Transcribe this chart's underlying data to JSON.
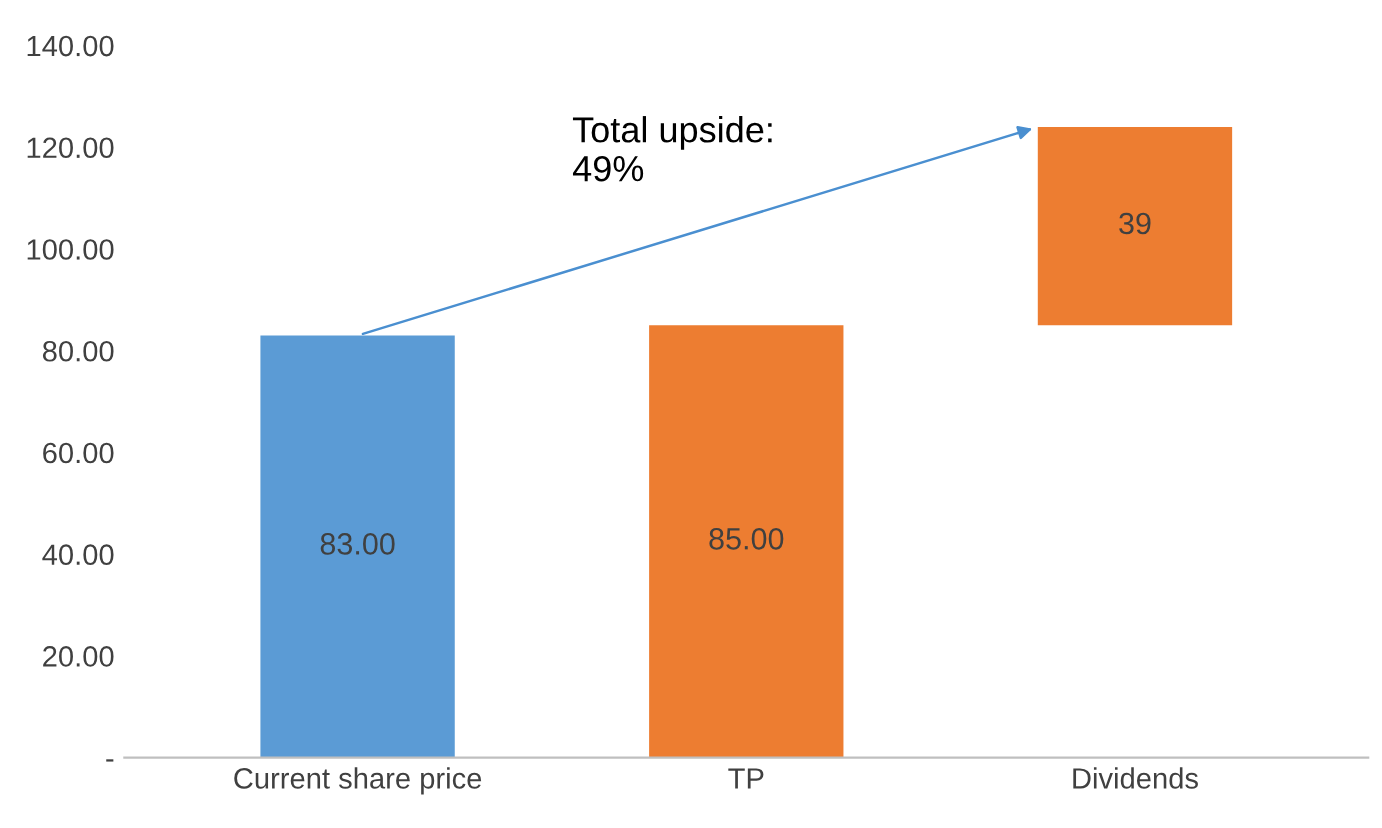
{
  "chart_data": {
    "type": "bar",
    "categories": [
      "Current share price",
      "TP",
      "Dividends"
    ],
    "values": [
      83,
      85,
      39
    ],
    "base": [
      0,
      0,
      85
    ],
    "colors": [
      "#5b9bd5",
      "#ed7d31",
      "#ed7d31"
    ],
    "value_labels": [
      "83.00",
      "85.00",
      "39"
    ],
    "ylim": [
      0,
      140
    ],
    "yticks": [
      {
        "value": 0,
        "label": "-"
      },
      {
        "value": 20,
        "label": "20.00"
      },
      {
        "value": 40,
        "label": "40.00"
      },
      {
        "value": 60,
        "label": "60.00"
      },
      {
        "value": 80,
        "label": "80.00"
      },
      {
        "value": 100,
        "label": "100.00"
      },
      {
        "value": 120,
        "label": "120.00"
      },
      {
        "value": 140,
        "label": "140.00"
      }
    ],
    "annotations": [
      "Total upside:\n49%"
    ],
    "grid": false,
    "legend": false
  }
}
